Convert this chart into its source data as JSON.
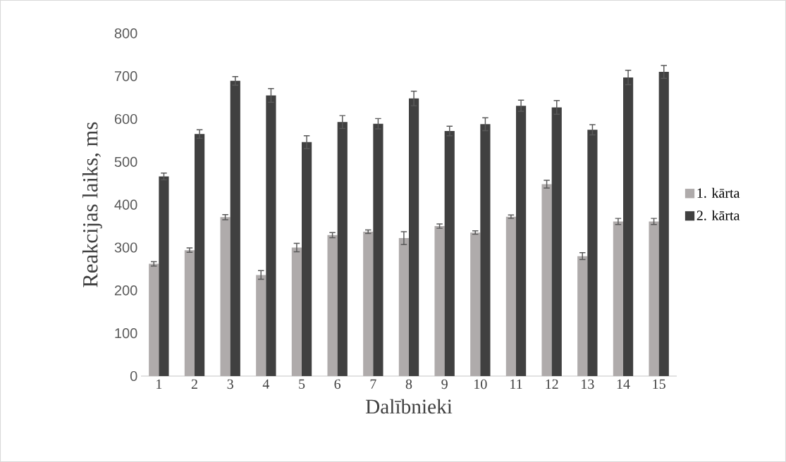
{
  "chart_data": {
    "type": "bar",
    "xlabel": "Dalībnieki",
    "ylabel": "Reakcijas laiks, ms",
    "categories": [
      "1",
      "2",
      "3",
      "4",
      "5",
      "6",
      "7",
      "8",
      "9",
      "10",
      "11",
      "12",
      "13",
      "14",
      "15"
    ],
    "series": [
      {
        "name": "1. kārta",
        "color": "#afabab",
        "values": [
          262,
          294,
          371,
          236,
          300,
          329,
          337,
          322,
          350,
          335,
          372,
          448,
          280,
          361,
          361
        ],
        "errors": [
          5,
          5,
          6,
          10,
          10,
          6,
          4,
          15,
          5,
          4,
          4,
          9,
          8,
          7,
          7
        ]
      },
      {
        "name": "2. kārta",
        "color": "#404040",
        "values": [
          466,
          565,
          689,
          655,
          546,
          593,
          589,
          648,
          572,
          588,
          631,
          627,
          575,
          697,
          710
        ],
        "errors": [
          8,
          10,
          10,
          16,
          15,
          15,
          12,
          17,
          11,
          15,
          13,
          16,
          12,
          17,
          15
        ]
      }
    ],
    "ylim": [
      0,
      800
    ],
    "yticks": [
      0,
      100,
      200,
      300,
      400,
      500,
      600,
      700,
      800
    ],
    "legend": "right",
    "grid": false
  }
}
